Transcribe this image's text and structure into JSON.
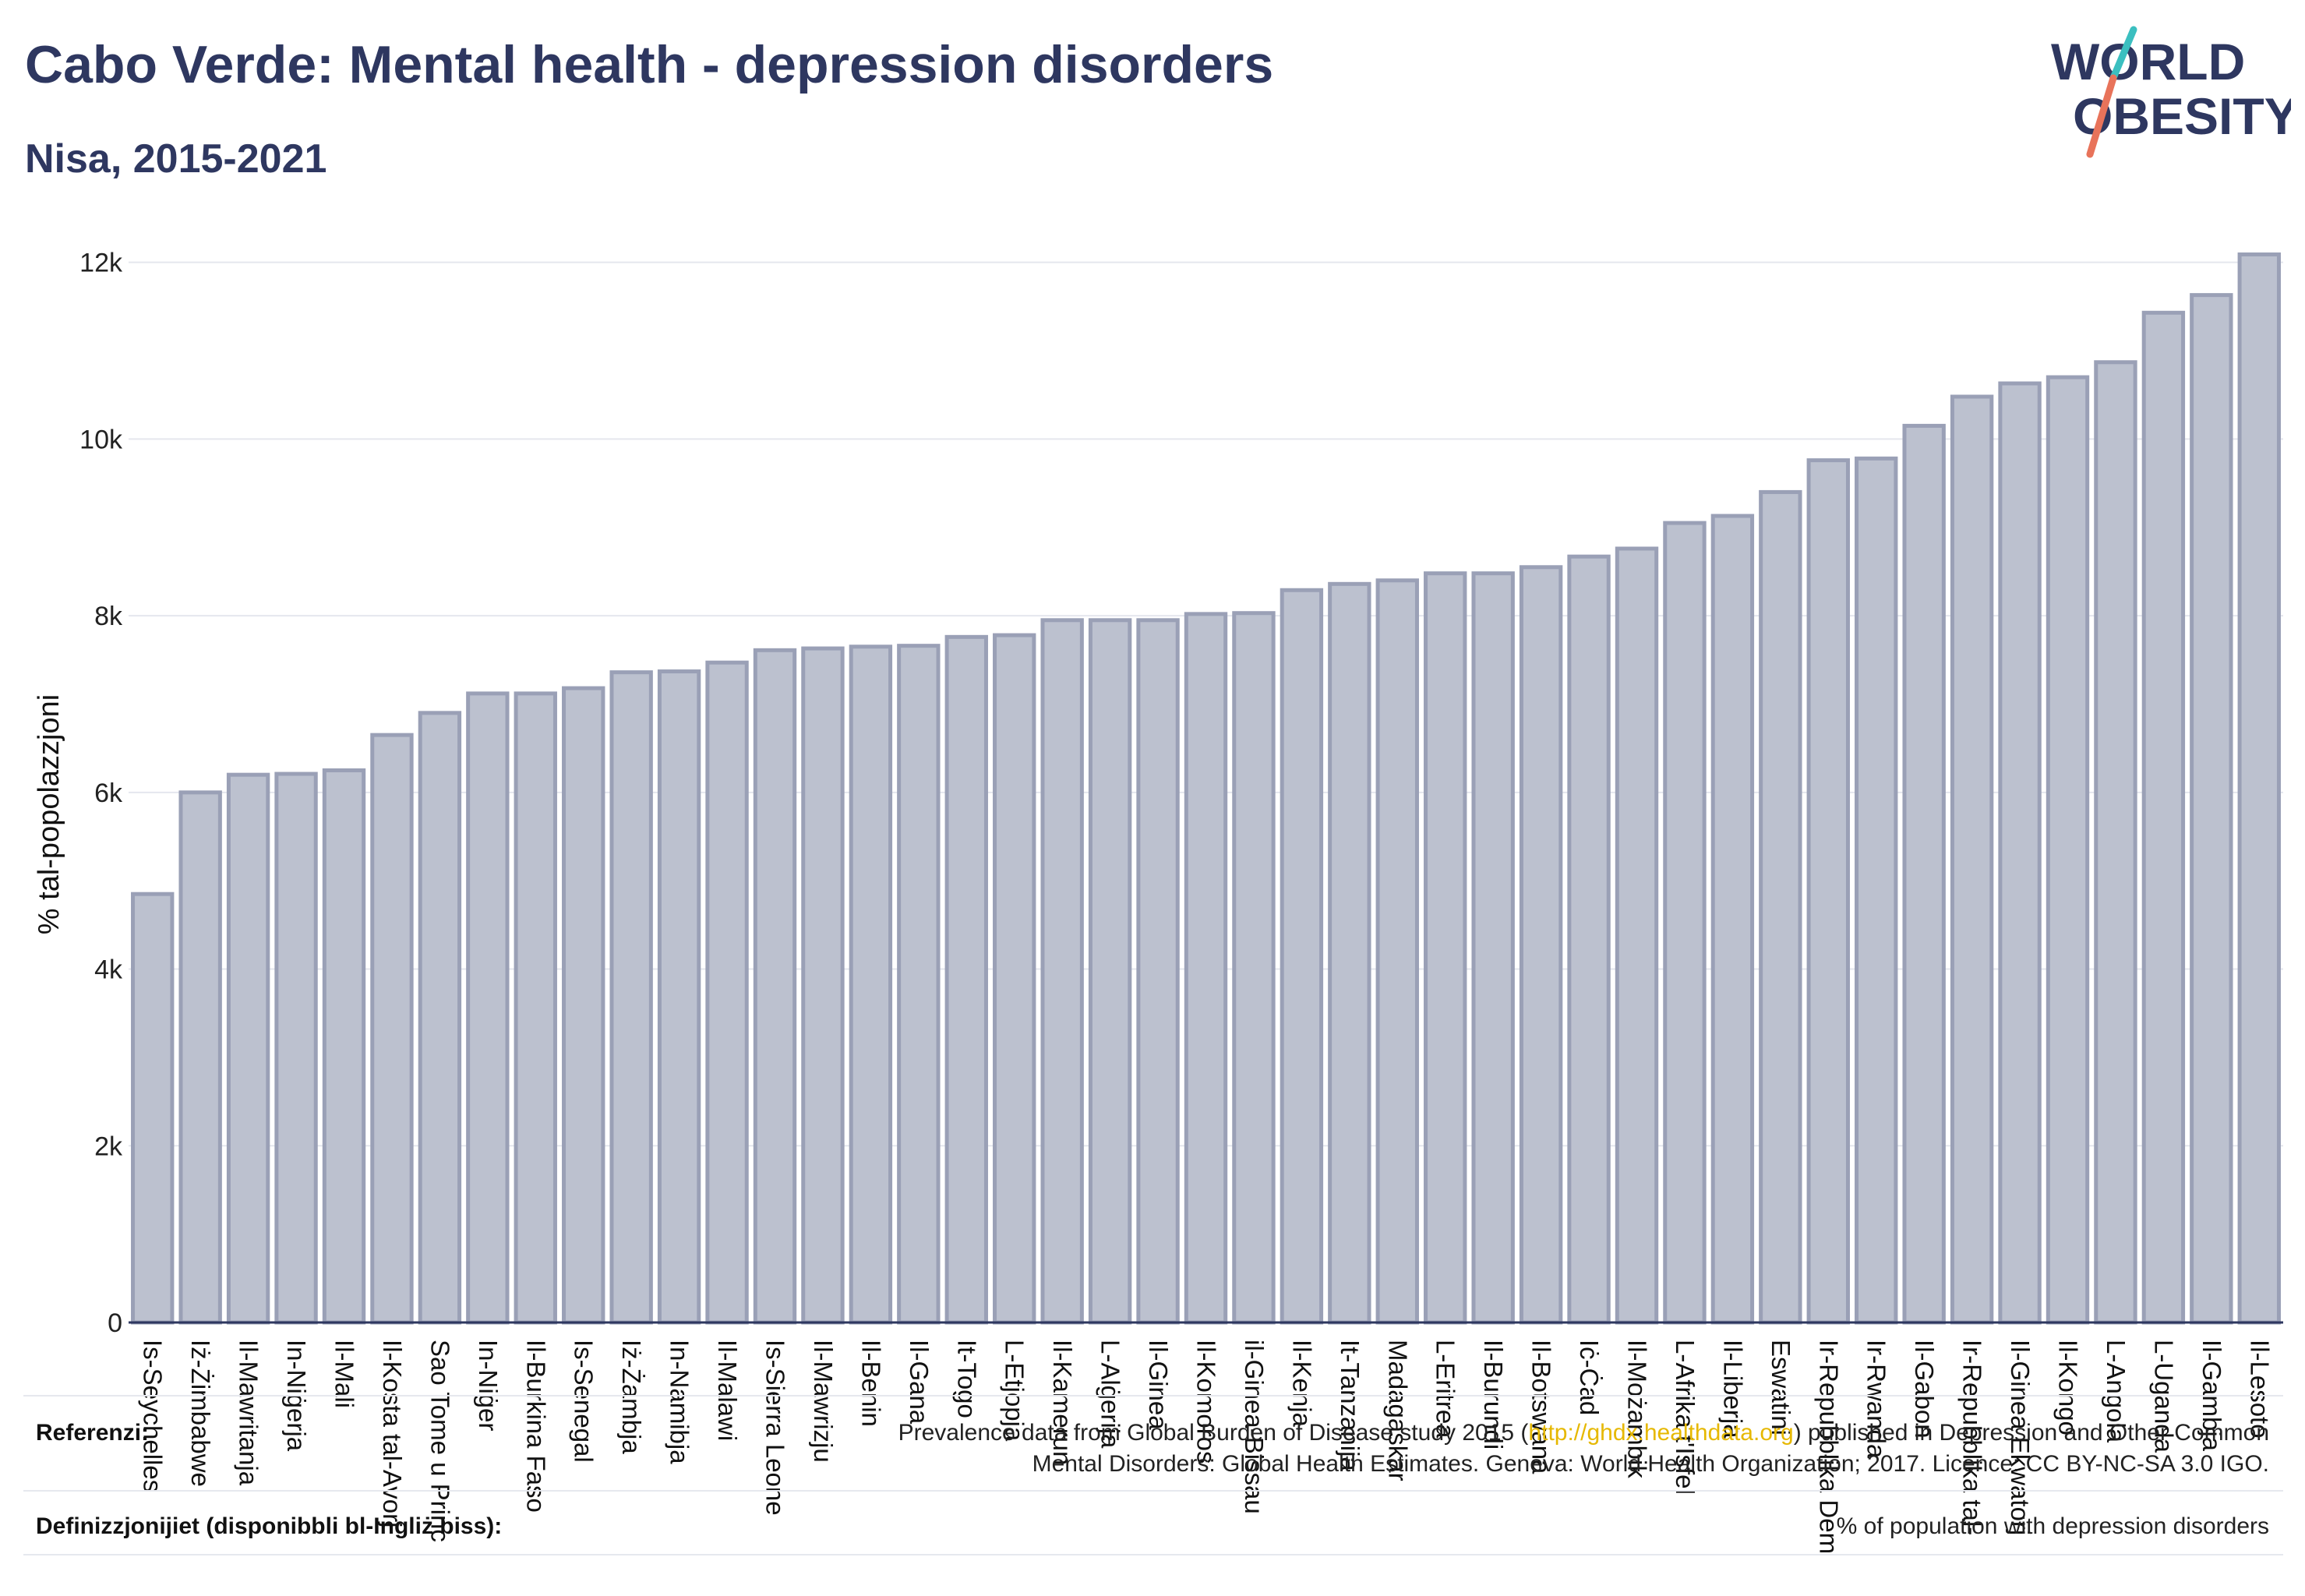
{
  "header": {
    "title": "Cabo Verde: Mental health - depression disorders",
    "subtitle": "Nisa, 2015-2021"
  },
  "logo": {
    "line1": "WORLD",
    "line2": "OBESITY",
    "accent_teal": "#3bbfc0",
    "accent_coral": "#e8735a",
    "text_color": "#2e3760"
  },
  "colors": {
    "bar_fill": "#bcc1cf",
    "bar_stroke": "#9aa0b6",
    "title": "#2e3760",
    "link": "#e6b800"
  },
  "chart_data": {
    "type": "bar",
    "ylabel": "% tal-popolazzjoni",
    "ylim": [
      0,
      12500
    ],
    "yticks": [
      0,
      2000,
      4000,
      6000,
      8000,
      10000,
      12000
    ],
    "ytick_labels": [
      "0",
      "2k",
      "4k",
      "6k",
      "8k",
      "10k",
      "12k"
    ],
    "grid": true,
    "categories": [
      "Is-Seychelles",
      "Iż-Żimbabwe",
      "Il-Mawritanja",
      "In-Niġerja",
      "Il-Mali",
      "Il-Kosta tal-Avorju",
      "Sao Tome u Principe",
      "In-Niġer",
      "Il-Burkina Faso",
      "Is-Senegal",
      "Iż-Żambja",
      "In-Namibja",
      "Il-Malawi",
      "Is-Sierra Leone",
      "Il-Mawrizju",
      "Il-Benin",
      "Il-Gana",
      "It-Togo",
      "L-Etjopja",
      "Il-Kamerun",
      "L-Alġerija",
      "Il-Ginea",
      "Il-Komoros",
      "il-Ginea-Bissau",
      "Il-Kenja",
      "It-Tanzanija",
      "Madagaskar",
      "L-Eritrea",
      "Il-Burundi",
      "Il-Botswana",
      "Iċ-Ċad",
      "Il-Możambik",
      "L-Afrika t'Isfel",
      "Il-Liberja",
      "Eswatini",
      "Ir-Repubblika Demokratika tal-Kongo",
      "Ir-Rwanda",
      "Il-Gabon",
      "Ir-Repubblika tal-Afrika Ċentrali",
      "Il-Ginea Ekwatorjali",
      "Il-Kongo",
      "L-Angola",
      "L-Uganda",
      "Il-Gambja",
      "Il-Lesoto"
    ],
    "display_labels": [
      "Is-Seychelles",
      "Iż-Żimbabwe",
      "Il-Mawritanja",
      "In-Niġerja",
      "Il-Mali",
      "Il-Kosta tal-Avorj",
      "Sao Tome u Princ",
      "In-Niġer",
      "Il-Burkina Faso",
      "Is-Senegal",
      "Iż-Żambja",
      "In-Namibja",
      "Il-Malawi",
      "Is-Sierra Leone",
      "Il-Mawrizju",
      "Il-Benin",
      "Il-Gana",
      "It-Togo",
      "L-Etjopja",
      "Il-Kamerun",
      "L-Alġerija",
      "Il-Ginea",
      "Il-Komoros",
      "il-Ginea-Bissau",
      "Il-Kenja",
      "It-Tanzanija",
      "Madagaskar",
      "L-Eritrea",
      "Il-Burundi",
      "Il-Botswana",
      "Iċ-Ċad",
      "Il-Możambik",
      "L-Afrika t'Isfel",
      "Il-Liberja",
      "Eswatini",
      "Ir-Repubblika Dem",
      "Ir-Rwanda",
      "Il-Gabon",
      "Ir-Repubblika tal-",
      "Il-Ginea Ekwatorj",
      "Il-Kongo",
      "L-Angola",
      "L-Uganda",
      "Il-Gambja",
      "Il-Lesoto"
    ],
    "values": [
      4850,
      6000,
      6200,
      6210,
      6250,
      6650,
      6900,
      7120,
      7120,
      7180,
      7360,
      7370,
      7470,
      7610,
      7630,
      7650,
      7660,
      7760,
      7780,
      7950,
      7950,
      7950,
      8020,
      8030,
      8290,
      8360,
      8400,
      8480,
      8480,
      8550,
      8670,
      8760,
      9050,
      9130,
      9400,
      9760,
      9780,
      10150,
      10480,
      10630,
      10700,
      10870,
      11430,
      11630,
      12090
    ]
  },
  "footer": {
    "references_label": "Referenzi:",
    "references_line1_before": "Prevalence data from Global Burden of Disease study 2015 (",
    "references_link": "http://ghdx.healthdata.org",
    "references_line1_after": ") published in Depression and Other Common",
    "references_line2": "Mental Disorders: Global Health Estimates. Geneva: World Health Organization; 2017. Licence: CC BY-NC-SA 3.0 IGO.",
    "definitions_label": "Definizzjonijiet (disponibbli bl-Ingliż biss):",
    "definitions_text": "% of population with depression disorders"
  }
}
